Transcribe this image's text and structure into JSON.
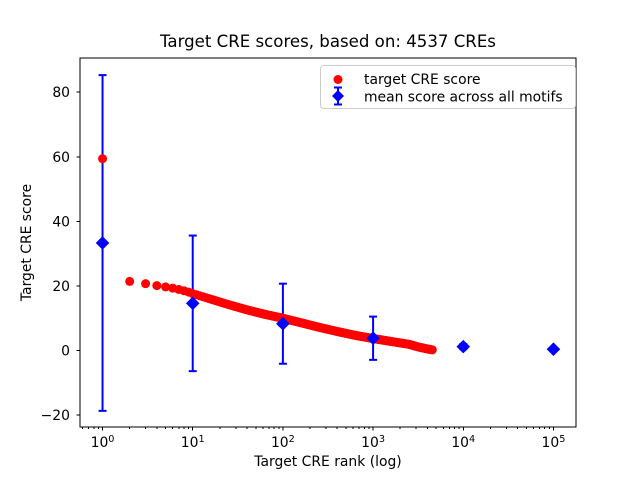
{
  "chart_data": {
    "type": "scatter",
    "title": "Target CRE scores, based on: 4537 CREs",
    "xlabel": "Target CRE rank (log)",
    "ylabel": "Target CRE score",
    "xscale": "log",
    "xlim_log10": [
      -0.25,
      5.25
    ],
    "ylim": [
      -23.7,
      90.6
    ],
    "xticks_exponents": [
      0,
      1,
      2,
      3,
      4,
      5
    ],
    "yticks": [
      -20,
      0,
      20,
      40,
      60,
      80
    ],
    "n_cres": 4537,
    "series": [
      {
        "name": "target CRE score",
        "marker": "circle",
        "color": "#ff0000",
        "n_points": 4537,
        "anchors_log10rank_value": [
          [
            0,
            59.4
          ],
          [
            0.301,
            21.4
          ],
          [
            0.477,
            20.7
          ],
          [
            0.602,
            20.1
          ],
          [
            0.699,
            19.7
          ],
          [
            0.778,
            19.3
          ],
          [
            0.845,
            18.9
          ],
          [
            0.903,
            18.5
          ],
          [
            0.954,
            18.1
          ],
          [
            1.0,
            17.6
          ],
          [
            1.2,
            15.9
          ],
          [
            1.4,
            14.2
          ],
          [
            1.6,
            12.6
          ],
          [
            1.8,
            11.2
          ],
          [
            2.0,
            10.0
          ],
          [
            2.2,
            8.6
          ],
          [
            2.4,
            7.2
          ],
          [
            2.6,
            5.9
          ],
          [
            2.8,
            4.7
          ],
          [
            3.0,
            3.7
          ],
          [
            3.2,
            2.8
          ],
          [
            3.4,
            1.9
          ],
          [
            3.5,
            1.1
          ],
          [
            3.6,
            0.5
          ],
          [
            3.6568,
            0.2
          ]
        ]
      },
      {
        "name": "mean score across all motifs",
        "marker": "diamond",
        "color": "#0000ff",
        "x": [
          1,
          10,
          100,
          1000,
          10000,
          100000
        ],
        "y": [
          33.3,
          14.6,
          8.3,
          3.8,
          1.2,
          0.4
        ],
        "yerr": [
          52.0,
          21.0,
          12.4,
          6.7,
          0.8,
          0.5
        ]
      }
    ],
    "legend": {
      "location": "upper right",
      "entries": [
        "target CRE score",
        "mean score across all motifs"
      ]
    }
  }
}
